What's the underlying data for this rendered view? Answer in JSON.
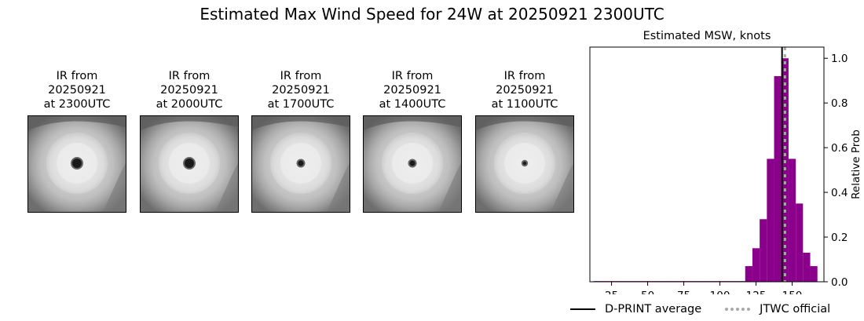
{
  "figure": {
    "title": "Estimated Max Wind Speed for 24W at 20250921 2300UTC"
  },
  "ir_panels": [
    {
      "line1": "IR from",
      "line2": "20250921",
      "line3": "at 2300UTC",
      "eye": "large"
    },
    {
      "line1": "IR from",
      "line2": "20250921",
      "line3": "at 2000UTC",
      "eye": "large"
    },
    {
      "line1": "IR from",
      "line2": "20250921",
      "line3": "at 1700UTC",
      "eye": "small"
    },
    {
      "line1": "IR from",
      "line2": "20250921",
      "line3": "at 1400UTC",
      "eye": "small"
    },
    {
      "line1": "IR from",
      "line2": "20250921",
      "line3": "at 1100UTC",
      "eye": "tiny"
    }
  ],
  "colors": {
    "bars": "#8b008b",
    "dprint_line": "#000000",
    "jtwc_line": "#a9a9a9"
  },
  "legend": {
    "dprint_label": "D-PRINT average",
    "jtwc_label": "JTWC official"
  },
  "chart_data": {
    "type": "bar",
    "title": "Estimated MSW, knots",
    "xlabel": "",
    "ylabel": "Relative Prob",
    "xlim": [
      10,
      172
    ],
    "ylim": [
      0,
      1.05
    ],
    "xticks": [
      25,
      50,
      75,
      100,
      125,
      150
    ],
    "yticks": [
      0.0,
      0.2,
      0.4,
      0.6,
      0.8,
      1.0
    ],
    "ytick_labels": [
      "0.0",
      "0.2",
      "0.4",
      "0.6",
      "0.8",
      "1.0"
    ],
    "y_axis_side": "right",
    "bin_width": 5,
    "bars": [
      {
        "x": 15,
        "value": 0.003
      },
      {
        "x": 20,
        "value": 0.003
      },
      {
        "x": 25,
        "value": 0.003
      },
      {
        "x": 30,
        "value": 0.003
      },
      {
        "x": 35,
        "value": 0.003
      },
      {
        "x": 40,
        "value": 0.003
      },
      {
        "x": 45,
        "value": 0.003
      },
      {
        "x": 50,
        "value": 0.003
      },
      {
        "x": 55,
        "value": 0.003
      },
      {
        "x": 60,
        "value": 0.003
      },
      {
        "x": 65,
        "value": 0.003
      },
      {
        "x": 70,
        "value": 0.003
      },
      {
        "x": 75,
        "value": 0.003
      },
      {
        "x": 80,
        "value": 0.003
      },
      {
        "x": 85,
        "value": 0.003
      },
      {
        "x": 90,
        "value": 0.003
      },
      {
        "x": 95,
        "value": 0.003
      },
      {
        "x": 100,
        "value": 0.003
      },
      {
        "x": 105,
        "value": 0.003
      },
      {
        "x": 110,
        "value": 0.003
      },
      {
        "x": 115,
        "value": 0.003
      },
      {
        "x": 120,
        "value": 0.07
      },
      {
        "x": 125,
        "value": 0.15
      },
      {
        "x": 130,
        "value": 0.28
      },
      {
        "x": 135,
        "value": 0.55
      },
      {
        "x": 140,
        "value": 0.92
      },
      {
        "x": 145,
        "value": 1.0
      },
      {
        "x": 150,
        "value": 0.55
      },
      {
        "x": 155,
        "value": 0.35
      },
      {
        "x": 160,
        "value": 0.13
      },
      {
        "x": 165,
        "value": 0.07
      }
    ],
    "dprint_average": 143,
    "jtwc_official": 145,
    "legend_position": "bottom"
  }
}
